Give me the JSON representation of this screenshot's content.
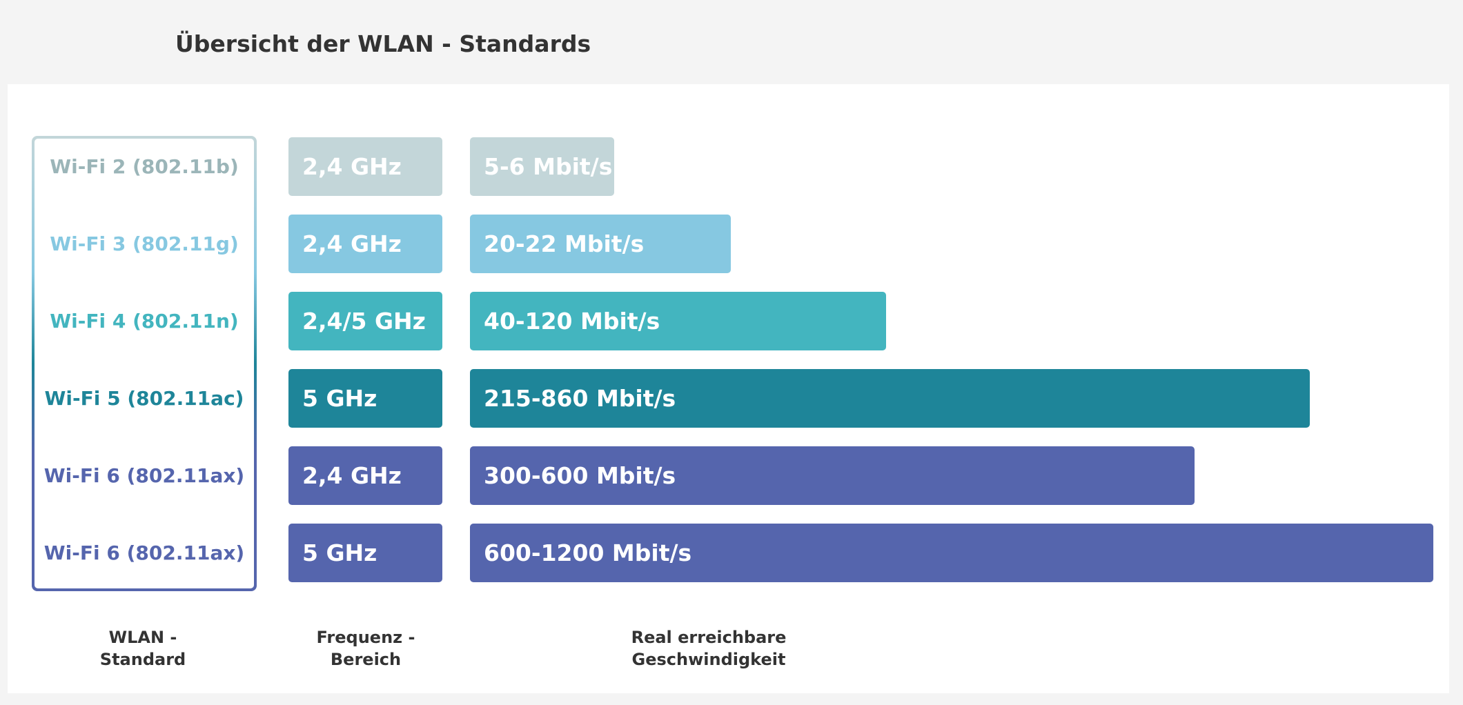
{
  "header": {
    "title": "Übersicht der WLAN - Standards"
  },
  "rows": [
    {
      "standard": "Wi-Fi 2 (802.11b)",
      "frequency": "2,4 GHz",
      "speed": "5-6 Mbit/s"
    },
    {
      "standard": "Wi-Fi 3 (802.11g)",
      "frequency": "2,4 GHz",
      "speed": "20-22 Mbit/s"
    },
    {
      "standard": "Wi-Fi 4 (802.11n)",
      "frequency": "2,4/5 GHz",
      "speed": "40-120 Mbit/s"
    },
    {
      "standard": "Wi-Fi 5 (802.11ac)",
      "frequency": "5 GHz",
      "speed": "215-860 Mbit/s"
    },
    {
      "standard": "Wi-Fi 6 (802.11ax)",
      "frequency": "2,4 GHz",
      "speed": "300-600 Mbit/s"
    },
    {
      "standard": "Wi-Fi 6 (802.11ax)",
      "frequency": "5 GHz",
      "speed": "600-1200 Mbit/s"
    }
  ],
  "column_labels": [
    "WLAN -\nStandard",
    "Frequenz -\nBereich",
    "Real erreichbare\nGeschwindigkeit"
  ]
}
